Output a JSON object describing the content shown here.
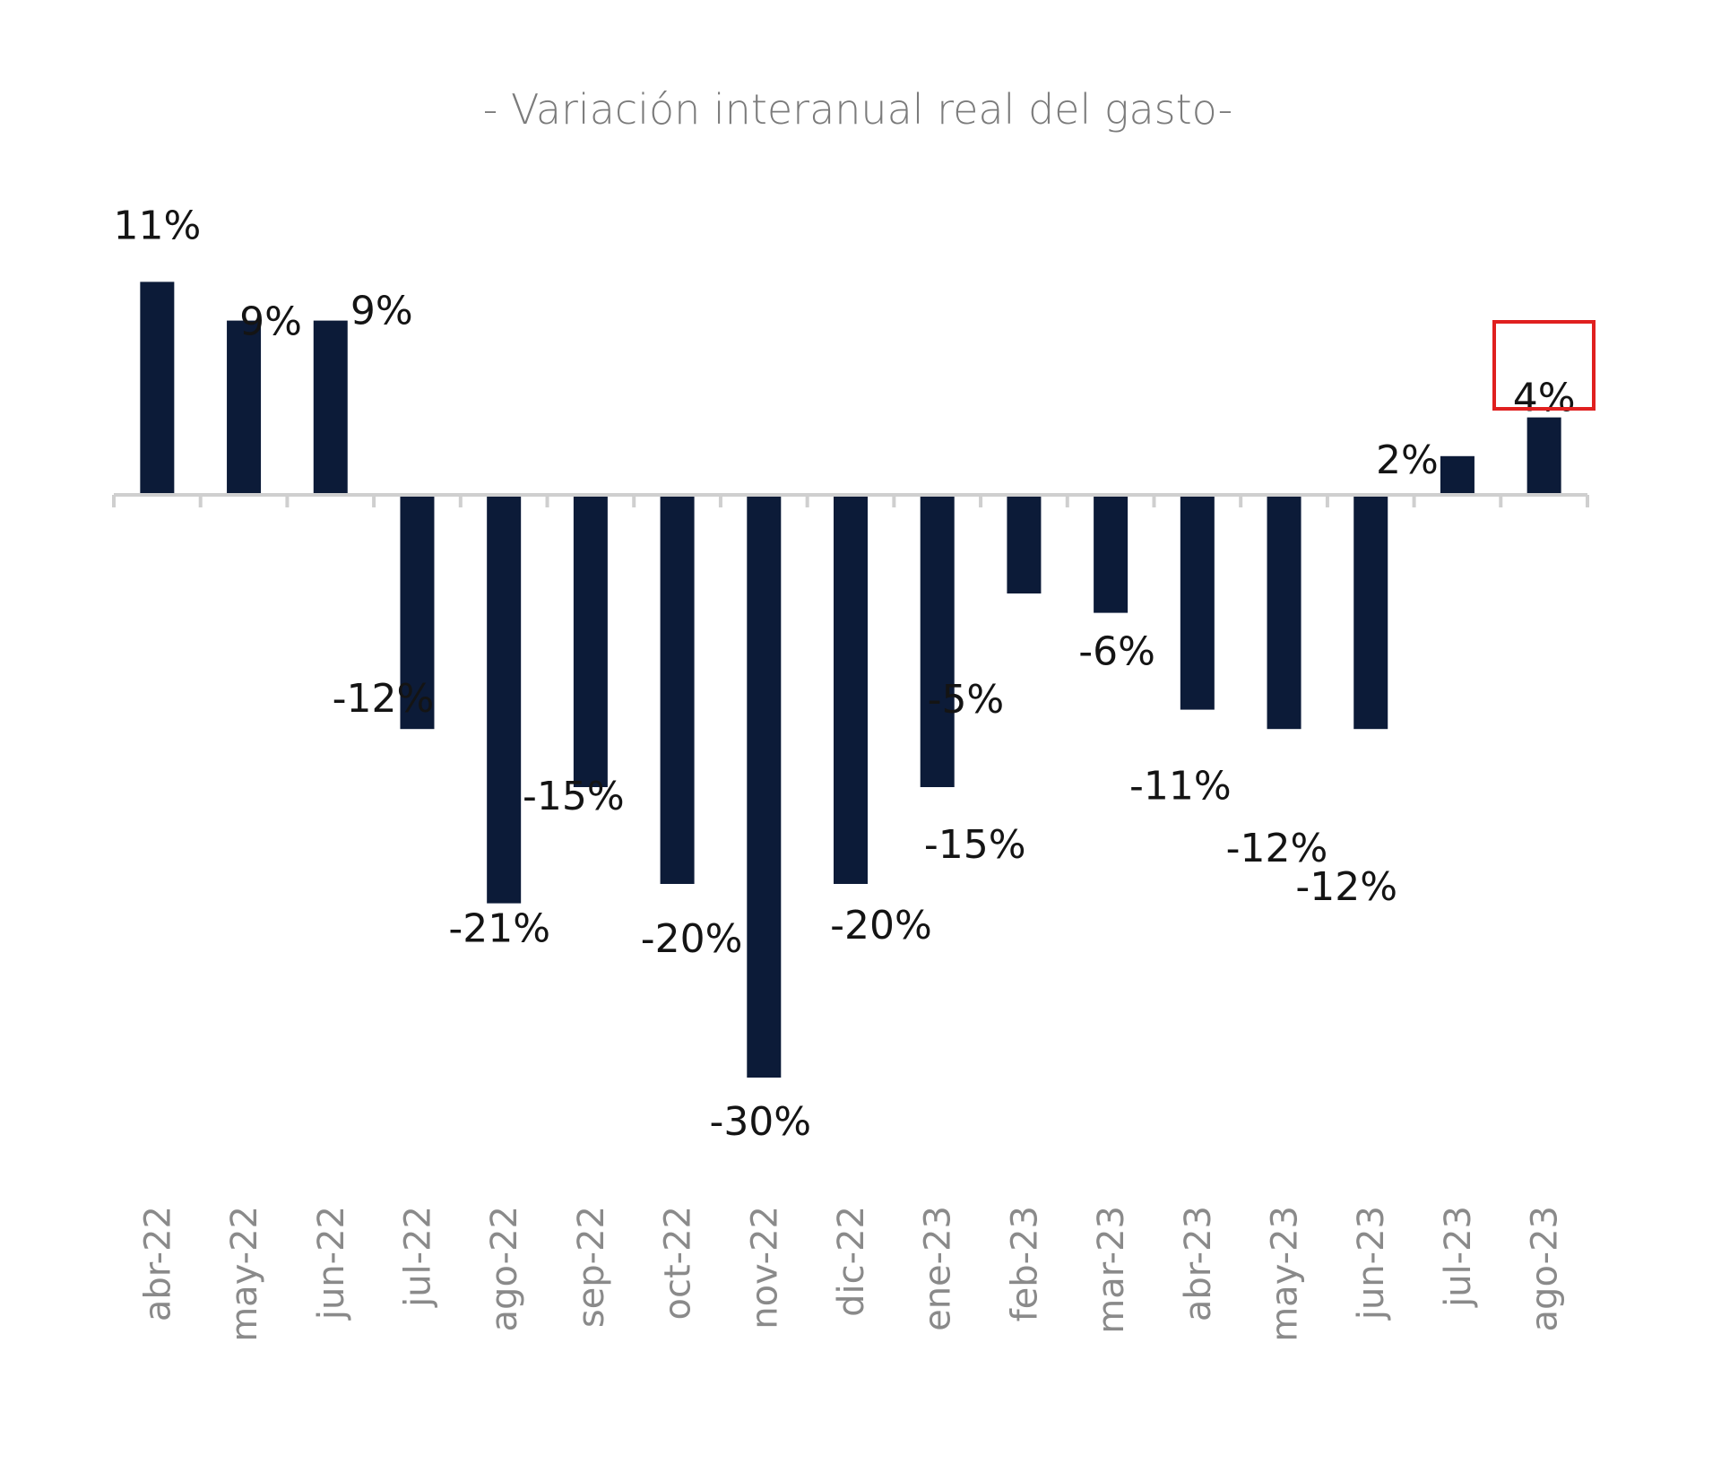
{
  "chart_data": {
    "type": "bar",
    "title": "- Variación interanual real del gasto-",
    "xlabel": "",
    "ylabel": "",
    "categories": [
      "abr-22",
      "may-22",
      "jun-22",
      "jul-22",
      "ago-22",
      "sep-22",
      "oct-22",
      "nov-22",
      "dic-22",
      "ene-23",
      "feb-23",
      "mar-23",
      "abr-23",
      "may-23",
      "jun-23",
      "jul-23",
      "ago-23"
    ],
    "values": [
      11,
      9,
      9,
      -12,
      -21,
      -15,
      -20,
      -30,
      -20,
      -15,
      -5,
      -6,
      -11,
      -12,
      -12,
      2,
      4
    ],
    "data_labels": [
      "11%",
      "9%",
      "9%",
      "-12%",
      "-21%",
      "-15%",
      "-20%",
      "-30%",
      "-20%",
      "-15%",
      "-5%",
      "-6%",
      "-11%",
      "-12%",
      "-12%",
      "2%",
      "4%"
    ],
    "highlighted_category": "ago-23",
    "ylim": [
      -30,
      11
    ],
    "grid": false,
    "legend": "none",
    "colors": {
      "bar": "#0c1b38",
      "highlight_box": "#e0201f",
      "axis": "#cfcfcf",
      "title": "#7b7b7b",
      "tick_label": "#8a8a8a",
      "value_label": "#141414"
    }
  }
}
